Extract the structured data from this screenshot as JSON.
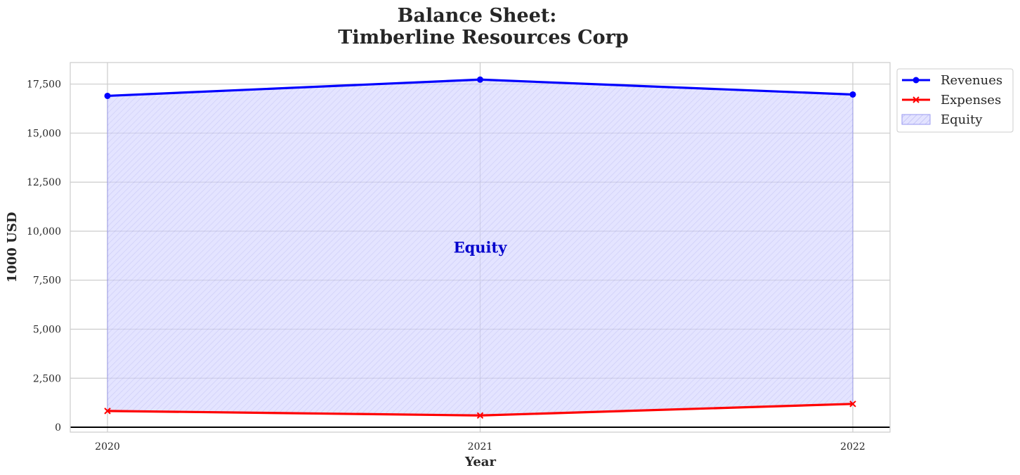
{
  "chart_data": {
    "type": "area",
    "title_line1": "Balance Sheet:",
    "title_line2": "Timberline Resources Corp",
    "xlabel": "Year",
    "ylabel": "1000 USD",
    "categories": [
      "2020",
      "2021",
      "2022"
    ],
    "ylim": [
      -250,
      18600
    ],
    "yticks": [
      0,
      2500,
      5000,
      7500,
      10000,
      12500,
      15000,
      17500
    ],
    "ytick_labels": [
      "0",
      "2,500",
      "5,000",
      "7,500",
      "10,000",
      "12,500",
      "15,000",
      "17,500"
    ],
    "series": [
      {
        "name": "Revenues",
        "values": [
          16900,
          17730,
          16970
        ],
        "color": "#0000ff",
        "marker": "circle"
      },
      {
        "name": "Expenses",
        "values": [
          830,
          600,
          1190
        ],
        "color": "#ff0000",
        "marker": "x"
      }
    ],
    "fill": {
      "name": "Equity",
      "between": [
        "Revenues",
        "Expenses"
      ],
      "color": "#0000ff"
    },
    "annotation": {
      "text": "Equity",
      "color": "#0000cc"
    },
    "grid": true,
    "legend_position": "outside-top-right"
  }
}
